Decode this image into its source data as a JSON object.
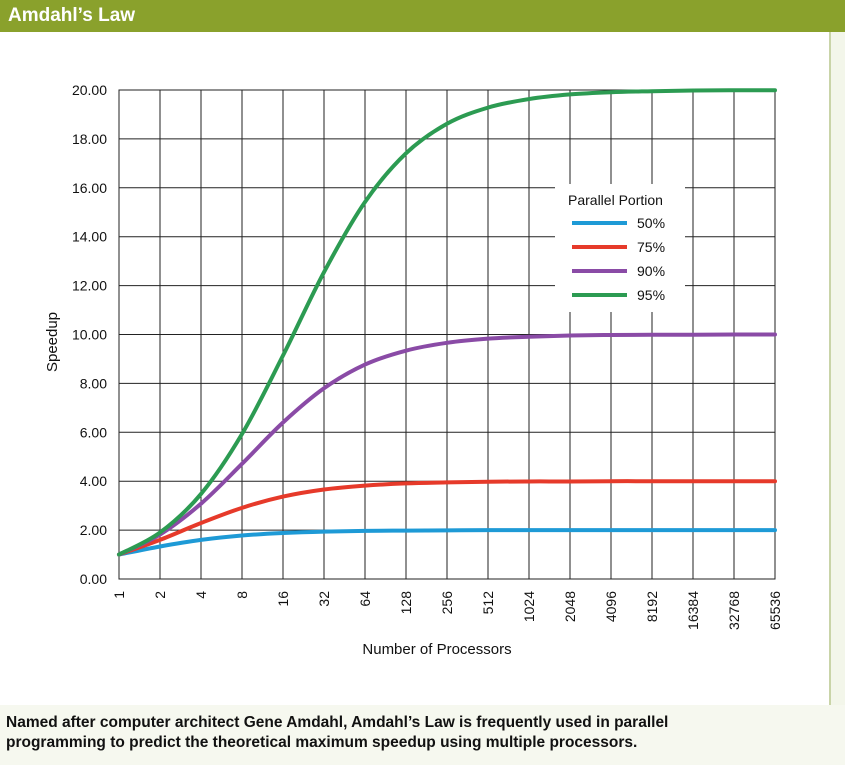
{
  "header": {
    "title": "Amdahl’s Law"
  },
  "caption": {
    "line1": "Named after computer architect Gene Amdahl, Amdahl’s Law is frequently used in parallel",
    "line2": "programming to predict the theoretical maximum speedup using multiple processors."
  },
  "chart_data": {
    "type": "line",
    "title": "",
    "xlabel": "Number of Processors",
    "ylabel": "Speedup",
    "x": [
      "1",
      "2",
      "4",
      "8",
      "16",
      "32",
      "64",
      "128",
      "256",
      "512",
      "1024",
      "2048",
      "4096",
      "8192",
      "16384",
      "32768",
      "65536"
    ],
    "ylim": [
      0,
      20
    ],
    "yticks": [
      "0.00",
      "2.00",
      "4.00",
      "6.00",
      "8.00",
      "10.00",
      "12.00",
      "14.00",
      "16.00",
      "18.00",
      "20.00"
    ],
    "grid": true,
    "legend": {
      "title": "Parallel Portion",
      "placement": "top-right"
    },
    "series": [
      {
        "name": "50%",
        "color": "#1e9ad6",
        "values": [
          1.0,
          1.33,
          1.6,
          1.78,
          1.88,
          1.94,
          1.97,
          1.98,
          1.99,
          2.0,
          2.0,
          2.0,
          2.0,
          2.0,
          2.0,
          2.0,
          2.0
        ]
      },
      {
        "name": "75%",
        "color": "#e63a2a",
        "values": [
          1.0,
          1.6,
          2.29,
          2.91,
          3.37,
          3.66,
          3.82,
          3.91,
          3.95,
          3.98,
          3.99,
          3.99,
          4.0,
          4.0,
          4.0,
          4.0,
          4.0
        ]
      },
      {
        "name": "90%",
        "color": "#8a4ba6",
        "values": [
          1.0,
          1.82,
          3.08,
          4.71,
          6.4,
          7.8,
          8.77,
          9.34,
          9.66,
          9.83,
          9.91,
          9.96,
          9.98,
          9.99,
          9.99,
          10.0,
          10.0
        ]
      },
      {
        "name": "95%",
        "color": "#2c9b52",
        "values": [
          1.0,
          1.9,
          3.48,
          5.93,
          9.14,
          12.55,
          15.42,
          17.41,
          18.62,
          19.28,
          19.63,
          19.82,
          19.91,
          19.95,
          19.98,
          19.99,
          19.99
        ]
      }
    ]
  }
}
